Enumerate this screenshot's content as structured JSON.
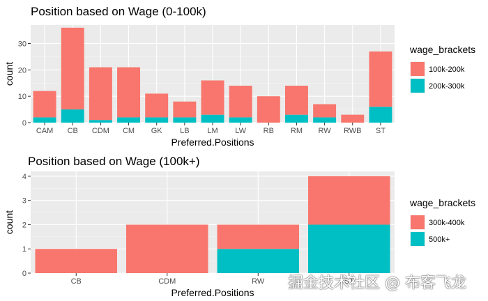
{
  "chart_data": [
    {
      "type": "bar",
      "stacked": true,
      "title": "Position based on Wage (0-100k)",
      "xlabel": "Preferred.Positions",
      "ylabel": "count",
      "ylim": [
        0,
        37
      ],
      "yticks": [
        0,
        10,
        20,
        30
      ],
      "categories": [
        "CAM",
        "CB",
        "CDM",
        "CM",
        "GK",
        "LB",
        "LM",
        "LW",
        "RB",
        "RM",
        "RW",
        "RWB",
        "ST"
      ],
      "legend_title": "wage_brackets",
      "legend_position": "right",
      "series": [
        {
          "name": "100k-200k",
          "color": "#F8766D",
          "values": [
            10,
            31,
            20,
            19,
            9,
            6,
            13,
            12,
            10,
            11,
            5,
            3,
            21
          ]
        },
        {
          "name": "200k-300k",
          "color": "#00BFC4",
          "values": [
            2,
            5,
            1,
            2,
            2,
            2,
            3,
            2,
            0,
            3,
            2,
            0,
            6
          ]
        }
      ]
    },
    {
      "type": "bar",
      "stacked": true,
      "title": "Position based on Wage (100k+)",
      "xlabel": "Preferred.Positions",
      "ylabel": "count",
      "ylim": [
        0,
        4.2
      ],
      "yticks": [
        0,
        1,
        2,
        3,
        4
      ],
      "categories": [
        "CB",
        "CDM",
        "RW",
        "ST"
      ],
      "legend_title": "wage_brackets",
      "legend_position": "right",
      "series": [
        {
          "name": "300k-400k",
          "color": "#F8766D",
          "values": [
            1,
            2,
            1,
            2
          ]
        },
        {
          "name": "500k+",
          "color": "#00BFC4",
          "values": [
            0,
            0,
            1,
            2
          ]
        }
      ]
    }
  ],
  "watermark": "掘金技术社区 @ 布客飞龙"
}
